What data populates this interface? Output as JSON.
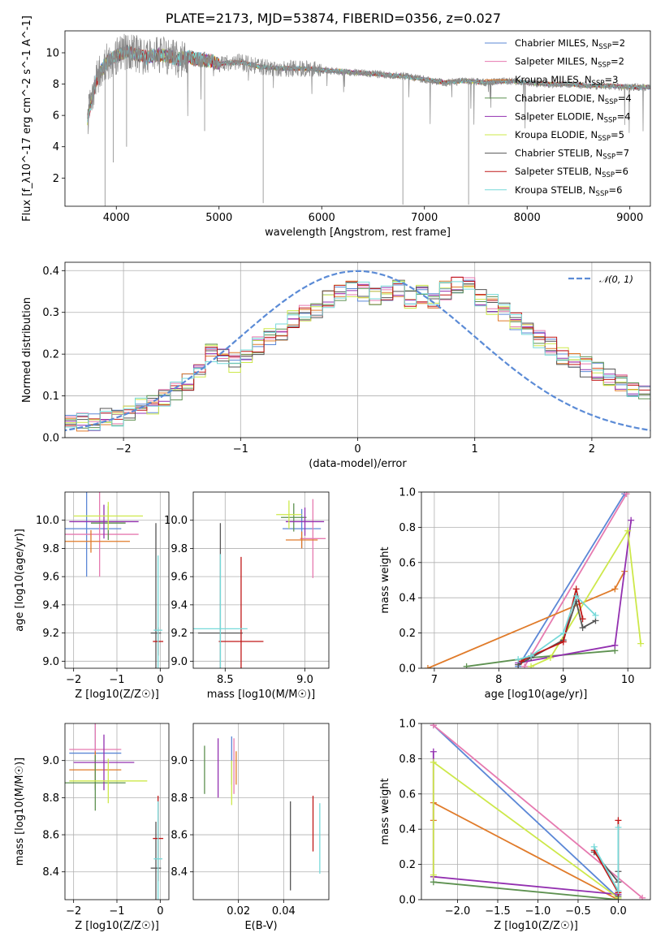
{
  "colors": {
    "chabrier_miles": "#5b87d6",
    "salpeter_miles": "#e67ab0",
    "kroupa_miles": "#e07b2a",
    "chabrier_elodie": "#5d9150",
    "salpeter_elodie": "#9330b0",
    "kroupa_elodie": "#cde84a",
    "chabrier_stelib": "#555555",
    "salpeter_stelib": "#c01818",
    "kroupa_stelib": "#76d9d9"
  },
  "chart_data": [
    {
      "id": "spectrum",
      "type": "line",
      "title": "PLATE=2173, MJD=53874, FIBERID=0356, z=0.027",
      "xlabel": "wavelength [Angstrom, rest frame]",
      "ylabel": "Flux [f_λ10^-17 erg cm^-2 s^-1 A^-1]",
      "xlim": [
        3500,
        9200
      ],
      "ylim": [
        0.2,
        11.4
      ],
      "xticks": [
        4000,
        5000,
        6000,
        7000,
        8000,
        9000
      ],
      "yticks": [
        2,
        4,
        6,
        8,
        10
      ],
      "legend_position": "top-right",
      "legend": [
        {
          "label": "Chabrier MILES, N",
          "sub": "SSP",
          "eq": "=2",
          "color_key": "chabrier_miles"
        },
        {
          "label": "Salpeter MILES, N",
          "sub": "SSP",
          "eq": "=2",
          "color_key": "salpeter_miles"
        },
        {
          "label": "Kroupa MILES, N",
          "sub": "SSP",
          "eq": "=3",
          "color_key": "kroupa_miles"
        },
        {
          "label": "Chabrier ELODIE, N",
          "sub": "SSP",
          "eq": "=4",
          "color_key": "chabrier_elodie"
        },
        {
          "label": "Salpeter ELODIE, N",
          "sub": "SSP",
          "eq": "=4",
          "color_key": "salpeter_elodie"
        },
        {
          "label": "Kroupa ELODIE, N",
          "sub": "SSP",
          "eq": "=5",
          "color_key": "kroupa_elodie"
        },
        {
          "label": "Chabrier STELIB, N",
          "sub": "SSP",
          "eq": "=7",
          "color_key": "chabrier_stelib"
        },
        {
          "label": "Salpeter STELIB, N",
          "sub": "SSP",
          "eq": "=6",
          "color_key": "salpeter_stelib"
        },
        {
          "label": "Kroupa STELIB, N",
          "sub": "SSP",
          "eq": "=6",
          "color_key": "kroupa_stelib"
        }
      ],
      "spectrum": {
        "x": [
          3720,
          3800,
          3900,
          4000,
          4100,
          4200,
          4300,
          4400,
          4500,
          4600,
          4700,
          4800,
          4900,
          5000,
          5200,
          5400,
          5600,
          5800,
          6000,
          6200,
          6400,
          6600,
          6800,
          7000,
          7200,
          7400,
          7600,
          7800,
          8000,
          8200,
          8400,
          8600,
          8800,
          9000,
          9200
        ],
        "y": [
          5.8,
          8.2,
          9.4,
          9.8,
          10.1,
          9.9,
          9.7,
          9.9,
          9.8,
          9.6,
          9.7,
          9.6,
          9.5,
          9.3,
          9.4,
          9.1,
          9.0,
          9.0,
          8.9,
          8.8,
          8.7,
          8.6,
          8.5,
          8.3,
          8.1,
          8.2,
          8.1,
          8.2,
          8.1,
          8.0,
          8.0,
          7.9,
          7.9,
          7.8,
          7.8
        ]
      },
      "absorption_dips": [
        {
          "x": 3890,
          "y": 0.2
        },
        {
          "x": 5430,
          "y": 0.4
        },
        {
          "x": 6790,
          "y": 0.3
        },
        {
          "x": 7430,
          "y": 0.3
        },
        {
          "x": 3970,
          "y": 3.0
        },
        {
          "x": 4100,
          "y": 4.0
        },
        {
          "x": 4860,
          "y": 5.0
        }
      ]
    },
    {
      "id": "residuals",
      "type": "histogram",
      "xlabel": "(data-model)/error",
      "ylabel": "Normed distribution",
      "xlim": [
        -2.5,
        2.5
      ],
      "ylim": [
        0,
        0.42
      ],
      "xticks": [
        -2,
        -1,
        0,
        1,
        2
      ],
      "yticks": [
        0.0,
        0.1,
        0.2,
        0.3,
        0.4
      ],
      "gaussian_label": "𝒩(0, 1)",
      "gaussian_color": "#5b8bd6",
      "legend_position": "top-right",
      "bin_width": 0.1,
      "bin_start": -2.5,
      "base_values": [
        0.05,
        0.04,
        0.04,
        0.05,
        0.05,
        0.06,
        0.07,
        0.08,
        0.1,
        0.11,
        0.13,
        0.17,
        0.2,
        0.19,
        0.18,
        0.2,
        0.22,
        0.24,
        0.25,
        0.28,
        0.3,
        0.31,
        0.33,
        0.35,
        0.36,
        0.35,
        0.34,
        0.35,
        0.36,
        0.33,
        0.34,
        0.33,
        0.35,
        0.37,
        0.36,
        0.34,
        0.32,
        0.3,
        0.28,
        0.27,
        0.24,
        0.22,
        0.2,
        0.19,
        0.17,
        0.16,
        0.14,
        0.13,
        0.12,
        0.1,
        0.09,
        0.08,
        0.07,
        0.06,
        0.06,
        0.05,
        0.05,
        0.04,
        0.04,
        0.04
      ]
    },
    {
      "id": "age_vs_Z",
      "type": "errorbar",
      "xlabel": "Z [log10(Z/Z☉)]",
      "ylabel": "age  [log10(age/yr)]",
      "xlim": [
        -2.2,
        0.2
      ],
      "ylim": [
        8.95,
        10.2
      ],
      "xticks": [
        -2,
        -1,
        0
      ],
      "yticks": [
        9.0,
        9.2,
        9.4,
        9.6,
        9.8,
        10.0
      ],
      "points": [
        {
          "key": "chabrier_miles",
          "x": -1.7,
          "xerr": 0.8,
          "y": 9.94,
          "yerr": 0.34
        },
        {
          "key": "salpeter_miles",
          "x": -1.4,
          "xerr": 0.9,
          "y": 9.9,
          "yerr": 0.3
        },
        {
          "key": "kroupa_miles",
          "x": -1.6,
          "xerr": 0.9,
          "y": 9.85,
          "yerr": 0.08
        },
        {
          "key": "chabrier_elodie",
          "x": -1.2,
          "xerr": 0.4,
          "y": 9.98,
          "yerr": 0.12
        },
        {
          "key": "salpeter_elodie",
          "x": -1.3,
          "xerr": 0.8,
          "y": 9.99,
          "yerr": 0.12
        },
        {
          "key": "kroupa_elodie",
          "x": -1.2,
          "xerr": 0.8,
          "y": 10.03,
          "yerr": 0.1
        },
        {
          "key": "chabrier_stelib",
          "x": -0.1,
          "xerr": 0.12,
          "y": 9.2,
          "yerr": 0.78
        },
        {
          "key": "salpeter_stelib",
          "x": -0.05,
          "xerr": 0.12,
          "y": 9.14,
          "yerr": 0.1
        },
        {
          "key": "kroupa_stelib",
          "x": -0.05,
          "xerr": 0.1,
          "y": 9.22,
          "yerr": 0.53
        }
      ]
    },
    {
      "id": "age_vs_mass",
      "type": "errorbar",
      "xlabel": "mass [log10(M/M☉)]",
      "ylabel": "",
      "xlim": [
        8.3,
        9.15
      ],
      "ylim": [
        8.95,
        10.2
      ],
      "xticks": [
        8.5,
        9.0
      ],
      "yticks": [
        9.0,
        9.2,
        9.4,
        9.6,
        9.8,
        10.0
      ],
      "points": [
        {
          "key": "chabrier_miles",
          "x": 8.98,
          "xerr": 0.12,
          "y": 9.94,
          "yerr": 0.14
        },
        {
          "key": "salpeter_miles",
          "x": 9.05,
          "xerr": 0.08,
          "y": 9.87,
          "yerr": 0.28
        },
        {
          "key": "kroupa_miles",
          "x": 8.98,
          "xerr": 0.1,
          "y": 9.86,
          "yerr": 0.06
        },
        {
          "key": "chabrier_elodie",
          "x": 8.93,
          "xerr": 0.08,
          "y": 10.02,
          "yerr": 0.1
        },
        {
          "key": "salpeter_elodie",
          "x": 9.0,
          "xerr": 0.12,
          "y": 9.99,
          "yerr": 0.1
        },
        {
          "key": "kroupa_elodie",
          "x": 8.9,
          "xerr": 0.08,
          "y": 10.04,
          "yerr": 0.1
        },
        {
          "key": "chabrier_stelib",
          "x": 8.47,
          "xerr": 0.14,
          "y": 9.2,
          "yerr": 0.78
        },
        {
          "key": "salpeter_stelib",
          "x": 8.6,
          "xerr": 0.14,
          "y": 9.14,
          "yerr": 0.6
        },
        {
          "key": "kroupa_stelib",
          "x": 8.47,
          "xerr": 0.17,
          "y": 9.23,
          "yerr": 0.53
        }
      ]
    },
    {
      "id": "weight_vs_age",
      "type": "line",
      "xlabel": "age  [log10(age/yr)]",
      "ylabel": "mass weight",
      "xlim": [
        6.8,
        10.35
      ],
      "ylim": [
        0,
        1
      ],
      "xticks": [
        7,
        8,
        9,
        10
      ],
      "yticks": [
        0.0,
        0.2,
        0.4,
        0.6,
        0.8,
        1.0
      ],
      "series": [
        {
          "key": "chabrier_miles",
          "x": [
            8.3,
            9.95
          ],
          "y": [
            0.01,
            0.99
          ]
        },
        {
          "key": "salpeter_miles",
          "x": [
            8.4,
            9.98
          ],
          "y": [
            0.01,
            0.99
          ]
        },
        {
          "key": "kroupa_miles",
          "x": [
            6.9,
            9.8,
            9.95
          ],
          "y": [
            0.0,
            0.45,
            0.55
          ]
        },
        {
          "key": "chabrier_elodie",
          "x": [
            7.5,
            8.5,
            9.8
          ],
          "y": [
            0.01,
            0.06,
            0.1
          ]
        },
        {
          "key": "salpeter_elodie",
          "x": [
            8.3,
            9.8,
            10.05
          ],
          "y": [
            0.03,
            0.13,
            0.84
          ]
        },
        {
          "key": "kroupa_elodie",
          "x": [
            8.5,
            8.8,
            10.0,
            10.2
          ],
          "y": [
            0.01,
            0.06,
            0.78,
            0.14
          ]
        },
        {
          "key": "chabrier_stelib",
          "x": [
            8.3,
            8.5,
            9.0,
            9.2,
            9.3,
            9.5
          ],
          "y": [
            0.02,
            0.06,
            0.16,
            0.38,
            0.23,
            0.27
          ]
        },
        {
          "key": "salpeter_stelib",
          "x": [
            8.35,
            8.5,
            9.0,
            9.2,
            9.3
          ],
          "y": [
            0.04,
            0.07,
            0.15,
            0.45,
            0.28
          ]
        },
        {
          "key": "kroupa_stelib",
          "x": [
            8.3,
            8.5,
            9.0,
            9.2,
            9.5
          ],
          "y": [
            0.05,
            0.07,
            0.2,
            0.41,
            0.3
          ]
        }
      ]
    },
    {
      "id": "mass_vs_Z",
      "type": "errorbar",
      "xlabel": "Z [log10(Z/Z☉)]",
      "ylabel": "mass [log10(M/M☉)]",
      "xlim": [
        -2.2,
        0.2
      ],
      "ylim": [
        8.25,
        9.2
      ],
      "xticks": [
        -2,
        -1,
        0
      ],
      "yticks": [
        8.4,
        8.6,
        8.8,
        9.0
      ],
      "points": [
        {
          "key": "chabrier_miles",
          "x": -1.5,
          "xerr": 0.6,
          "y": 9.04,
          "yerr": 0.2
        },
        {
          "key": "salpeter_miles",
          "x": -1.5,
          "xerr": 0.6,
          "y": 9.06,
          "yerr": 0.15
        },
        {
          "key": "kroupa_miles",
          "x": -1.5,
          "xerr": 0.6,
          "y": 8.95,
          "yerr": 0.1
        },
        {
          "key": "chabrier_elodie",
          "x": -1.5,
          "xerr": 0.7,
          "y": 8.88,
          "yerr": 0.15
        },
        {
          "key": "salpeter_elodie",
          "x": -1.3,
          "xerr": 0.7,
          "y": 8.99,
          "yerr": 0.15
        },
        {
          "key": "kroupa_elodie",
          "x": -1.2,
          "xerr": 0.9,
          "y": 8.89,
          "yerr": 0.12
        },
        {
          "key": "chabrier_stelib",
          "x": -0.1,
          "xerr": 0.12,
          "y": 8.42,
          "yerr": 0.25
        },
        {
          "key": "salpeter_stelib",
          "x": -0.05,
          "xerr": 0.12,
          "y": 8.58,
          "yerr": 0.23
        },
        {
          "key": "kroupa_stelib",
          "x": -0.05,
          "xerr": 0.1,
          "y": 8.47,
          "yerr": 0.31
        }
      ]
    },
    {
      "id": "mass_vs_ebv",
      "type": "errorbar",
      "xlabel": "E(B-V)",
      "ylabel": "",
      "xlim": [
        0.0,
        0.06
      ],
      "ylim": [
        8.25,
        9.2
      ],
      "xticks": [
        0.02,
        0.04
      ],
      "yticks": [
        8.4,
        8.6,
        8.8,
        9.0
      ],
      "points": [
        {
          "key": "chabrier_miles",
          "x": 0.017,
          "xerr": 0.0,
          "y": 9.0,
          "yerr": 0.13
        },
        {
          "key": "salpeter_miles",
          "x": 0.018,
          "xerr": 0.0,
          "y": 8.97,
          "yerr": 0.15
        },
        {
          "key": "kroupa_miles",
          "x": 0.019,
          "xerr": 0.0,
          "y": 8.96,
          "yerr": 0.09
        },
        {
          "key": "chabrier_elodie",
          "x": 0.005,
          "xerr": 0.0,
          "y": 8.95,
          "yerr": 0.13
        },
        {
          "key": "salpeter_elodie",
          "x": 0.011,
          "xerr": 0.0,
          "y": 8.96,
          "yerr": 0.16
        },
        {
          "key": "kroupa_elodie",
          "x": 0.017,
          "xerr": 0.0,
          "y": 8.88,
          "yerr": 0.12
        },
        {
          "key": "chabrier_stelib",
          "x": 0.043,
          "xerr": 0.0,
          "y": 8.54,
          "yerr": 0.24
        },
        {
          "key": "salpeter_stelib",
          "x": 0.053,
          "xerr": 0.0,
          "y": 8.66,
          "yerr": 0.15
        },
        {
          "key": "kroupa_stelib",
          "x": 0.056,
          "xerr": 0.0,
          "y": 8.58,
          "yerr": 0.19
        }
      ]
    },
    {
      "id": "weight_vs_Z",
      "type": "line",
      "xlabel": "Z [log10(Z/Z☉)]",
      "ylabel": "mass weight",
      "xlim": [
        -2.45,
        0.4
      ],
      "ylim": [
        0,
        1
      ],
      "xticks": [
        -2.0,
        -1.5,
        -1.0,
        -0.5,
        0.0
      ],
      "yticks": [
        0.0,
        0.2,
        0.4,
        0.6,
        0.8,
        1.0
      ],
      "series": [
        {
          "key": "chabrier_miles",
          "x": [
            -2.3,
            0.0
          ],
          "y": [
            0.99,
            0.01
          ]
        },
        {
          "key": "salpeter_miles",
          "x": [
            -2.3,
            0.3
          ],
          "y": [
            0.99,
            0.01
          ]
        },
        {
          "key": "kroupa_miles",
          "x": [
            -2.3,
            -2.3,
            0.0
          ],
          "y": [
            0.45,
            0.55,
            0.0
          ]
        },
        {
          "key": "chabrier_elodie",
          "x": [
            -2.3,
            0.0
          ],
          "y": [
            0.1,
            0.0
          ]
        },
        {
          "key": "salpeter_elodie",
          "x": [
            -2.3,
            -2.3,
            0.0
          ],
          "y": [
            0.84,
            0.13,
            0.03
          ]
        },
        {
          "key": "kroupa_elodie",
          "x": [
            -2.3,
            -2.3,
            0.0
          ],
          "y": [
            0.14,
            0.78,
            0.01
          ]
        },
        {
          "key": "chabrier_stelib",
          "x": [
            -0.3,
            0.0,
            0.0,
            0.0
          ],
          "y": [
            0.27,
            0.1,
            0.16,
            0.02
          ]
        },
        {
          "key": "salpeter_stelib",
          "x": [
            -0.3,
            0.0,
            0.0
          ],
          "y": [
            0.28,
            0.04,
            0.45
          ]
        },
        {
          "key": "kroupa_stelib",
          "x": [
            -0.3,
            0.0,
            0.0
          ],
          "y": [
            0.3,
            0.05,
            0.41
          ]
        }
      ]
    }
  ]
}
